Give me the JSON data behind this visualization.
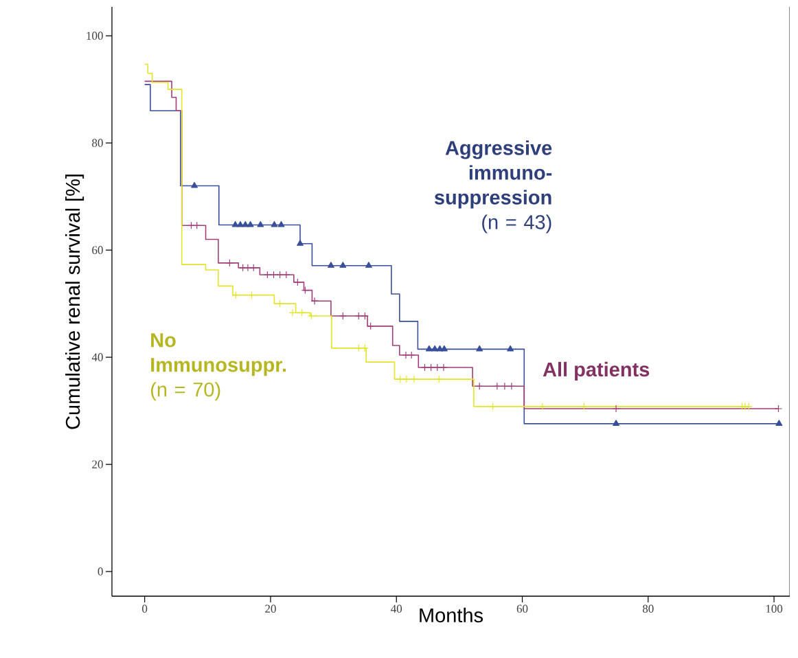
{
  "chart_data": {
    "type": "step",
    "xlabel": "Months",
    "ylabel": "Cumulative renal survival [%]",
    "xlim": [
      -5.2,
      102.5
    ],
    "ylim": [
      -4.6,
      105.4
    ],
    "xticks": [
      0,
      20,
      40,
      60,
      80,
      100
    ],
    "yticks": [
      0,
      20,
      40,
      60,
      80,
      100
    ],
    "grid": false,
    "legend": false,
    "marker": "none",
    "series": [
      {
        "name": "**Aggressive immuno-suppression** (n = 43)",
        "color": "#3a4f9a",
        "x": [
          0,
          0.9,
          5.7,
          11.8,
          24.7,
          26.6,
          39.2,
          40.5,
          43.4,
          60.3,
          100.8
        ],
        "values": [
          90.9,
          86.0,
          72.0,
          64.7,
          61.2,
          57.1,
          51.8,
          46.7,
          41.5,
          27.6,
          27.6
        ]
      },
      {
        "name": "**All patients**",
        "color": "#a33d7a",
        "x": [
          0,
          4.3,
          5.0,
          5.9,
          9.7,
          11.7,
          14.9,
          18.3,
          23.7,
          25.3,
          26.6,
          29.6,
          35.4,
          39.4,
          40.5,
          43.5,
          52.1,
          60.3,
          100.7
        ],
        "values": [
          91.5,
          88.5,
          86.0,
          64.6,
          62.0,
          57.6,
          56.7,
          55.4,
          54.0,
          52.5,
          50.5,
          47.7,
          45.8,
          42.2,
          40.4,
          38.1,
          34.6,
          30.4,
          30.4
        ]
      },
      {
        "name": "**No Immunosuppr.** (n = 70)",
        "color": "#e3e32a",
        "x": [
          0,
          0.5,
          1.2,
          3.7,
          5.9,
          9.7,
          11.7,
          14.0,
          20.6,
          24.0,
          26.3,
          29.7,
          35.2,
          39.7,
          52.3,
          96.0
        ],
        "values": [
          94.7,
          93.0,
          91.3,
          90.0,
          57.3,
          56.3,
          53.3,
          51.6,
          50.0,
          48.3,
          47.7,
          41.7,
          39.1,
          35.9,
          30.8,
          30.8
        ]
      },
      {
        "type": "scatter",
        "marker": "triangle",
        "color": "#3a4f9a",
        "x": [
          7.9,
          14.4,
          15.2,
          16.0,
          16.8,
          18.4,
          20.6,
          21.7,
          24.7,
          29.6,
          31.5,
          35.6,
          45.2,
          46.1,
          46.9,
          47.6,
          53.2,
          58.1,
          74.9,
          100.8
        ],
        "values": [
          72.0,
          64.7,
          64.7,
          64.7,
          64.7,
          64.7,
          64.7,
          64.7,
          61.2,
          57.1,
          57.1,
          57.1,
          41.5,
          41.5,
          41.5,
          41.5,
          41.5,
          41.5,
          27.6,
          27.6
        ]
      },
      {
        "type": "scatter",
        "marker": "cross",
        "color": "#a33d7a",
        "x": [
          7.4,
          8.3,
          13.5,
          15.6,
          16.4,
          17.3,
          19.5,
          20.5,
          21.5,
          22.5,
          24.3,
          25.5,
          27.0,
          31.5,
          34.0,
          35.0,
          35.9,
          41.5,
          42.4,
          44.5,
          45.5,
          46.5,
          47.5,
          53.2,
          56.0,
          57.2,
          58.3,
          74.9,
          100.7
        ],
        "values": [
          64.6,
          64.6,
          57.6,
          56.7,
          56.7,
          56.7,
          55.4,
          55.4,
          55.4,
          55.4,
          54.0,
          52.5,
          50.5,
          47.7,
          47.7,
          47.7,
          45.8,
          40.4,
          40.4,
          38.1,
          38.1,
          38.1,
          38.1,
          34.6,
          34.6,
          34.6,
          34.6,
          30.4,
          30.4
        ]
      },
      {
        "type": "scatter",
        "marker": "cross",
        "color": "#e3e32a",
        "x": [
          14.5,
          17.0,
          21.5,
          23.5,
          25.0,
          26.5,
          34.0,
          35.0,
          40.6,
          41.6,
          42.8,
          46.8,
          55.3,
          63.2,
          69.8,
          94.9,
          95.4,
          96.0
        ],
        "values": [
          51.6,
          51.6,
          50.0,
          48.3,
          48.3,
          47.7,
          41.7,
          41.7,
          35.9,
          35.9,
          35.9,
          35.9,
          30.8,
          30.8,
          30.8,
          30.8,
          30.8,
          30.8
        ]
      }
    ]
  }
}
